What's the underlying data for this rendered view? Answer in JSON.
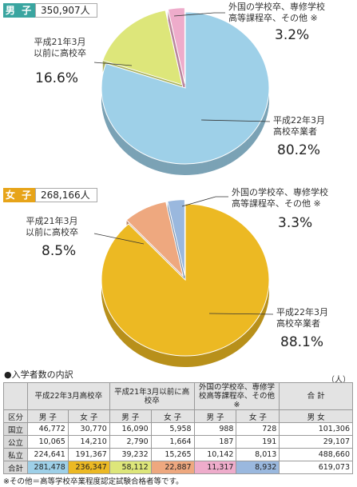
{
  "male": {
    "label": "男 子",
    "total": "350,907人",
    "slices": [
      {
        "name_lines": [
          "平成22年3月",
          "高校卒業者"
        ],
        "pct_label": "80.2%",
        "value": 80.2,
        "color": "#9ed0e8"
      },
      {
        "name_lines": [
          "平成21年3月",
          "以前に高校卒"
        ],
        "pct_label": "16.6%",
        "value": 16.6,
        "color": "#dde67a"
      },
      {
        "name_lines": [
          "外国の学校卒、専修学校",
          "高等課程卒、その他 ※"
        ],
        "pct_label": "3.2%",
        "value": 3.2,
        "color": "#eeaccb"
      }
    ]
  },
  "female": {
    "label": "女 子",
    "total": "268,166人",
    "slices": [
      {
        "name_lines": [
          "平成22年3月",
          "高校卒業者"
        ],
        "pct_label": "88.1%",
        "value": 88.1,
        "color": "#ecb923"
      },
      {
        "name_lines": [
          "平成21年3月",
          "以前に高校卒"
        ],
        "pct_label": "8.5%",
        "value": 8.5,
        "color": "#eea87f"
      },
      {
        "name_lines": [
          "外国の学校卒、専修学校",
          "高等課程卒、その他 ※"
        ],
        "pct_label": "3.3%",
        "value": 3.3,
        "color": "#9ab8de"
      }
    ]
  },
  "chart_data": [
    {
      "type": "pie",
      "title": "男 子 350,907人",
      "categories": [
        "平成22年3月高校卒業者",
        "平成21年3月以前に高校卒",
        "外国の学校卒、専修学校高等課程卒、その他 ※"
      ],
      "values": [
        80.2,
        16.6,
        3.2
      ]
    },
    {
      "type": "pie",
      "title": "女 子 268,166人",
      "categories": [
        "平成22年3月高校卒業者",
        "平成21年3月以前に高校卒",
        "外国の学校卒、専修学校高等課程卒、その他 ※"
      ],
      "values": [
        88.1,
        8.5,
        3.3
      ]
    }
  ],
  "table": {
    "title": "●入学者数の内訳",
    "unit": "（人）",
    "groups": [
      "平成22年3月高校卒",
      "平成21年3月以前に高校卒",
      "外国の学校卒、専修学校高等課程卒、その他 ※",
      "合 計"
    ],
    "row_header": "区分",
    "subheaders": [
      "男 子",
      "女 子",
      "男 子",
      "女 子",
      "男 子",
      "女 子",
      "男 女"
    ],
    "rows": [
      {
        "label": "国立",
        "cells": [
          "46,772",
          "30,770",
          "16,090",
          "5,958",
          "988",
          "728",
          "101,306"
        ]
      },
      {
        "label": "公立",
        "cells": [
          "10,065",
          "14,210",
          "2,790",
          "1,664",
          "187",
          "191",
          "29,107"
        ]
      },
      {
        "label": "私立",
        "cells": [
          "224,641",
          "191,367",
          "39,232",
          "15,265",
          "10,142",
          "8,013",
          "488,660"
        ]
      },
      {
        "label": "合計",
        "cells": [
          "281,478",
          "236,347",
          "58,112",
          "22,887",
          "11,317",
          "8,932",
          "619,073"
        ]
      }
    ],
    "total_colors": [
      "#9ed0e8",
      "#ecb923",
      "#dde67a",
      "#eea87f",
      "#eeaccb",
      "#9ab8de",
      "#ffffff"
    ],
    "note": "※その他＝高等学校卒業程度認定試験合格者等です。"
  }
}
